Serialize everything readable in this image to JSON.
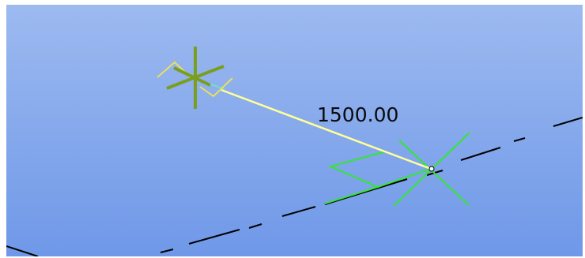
{
  "viewport": {
    "background_top": "#9dbaf0",
    "background_bottom": "#6f98e8"
  },
  "dimension": {
    "value_text": "1500.00",
    "line_color": "#ffff99",
    "extension_color": "#6fdfc8"
  },
  "colors": {
    "selected_point": "#7a9e1e",
    "vertex_marker": "#33e633",
    "axis_line": "#000000",
    "snap_marker": "#e8e05a"
  },
  "icons": {
    "start_point": "asterisk-marker",
    "end_point": "x-marker",
    "snap": "chevron-marker",
    "direction": "arrow-marker"
  }
}
